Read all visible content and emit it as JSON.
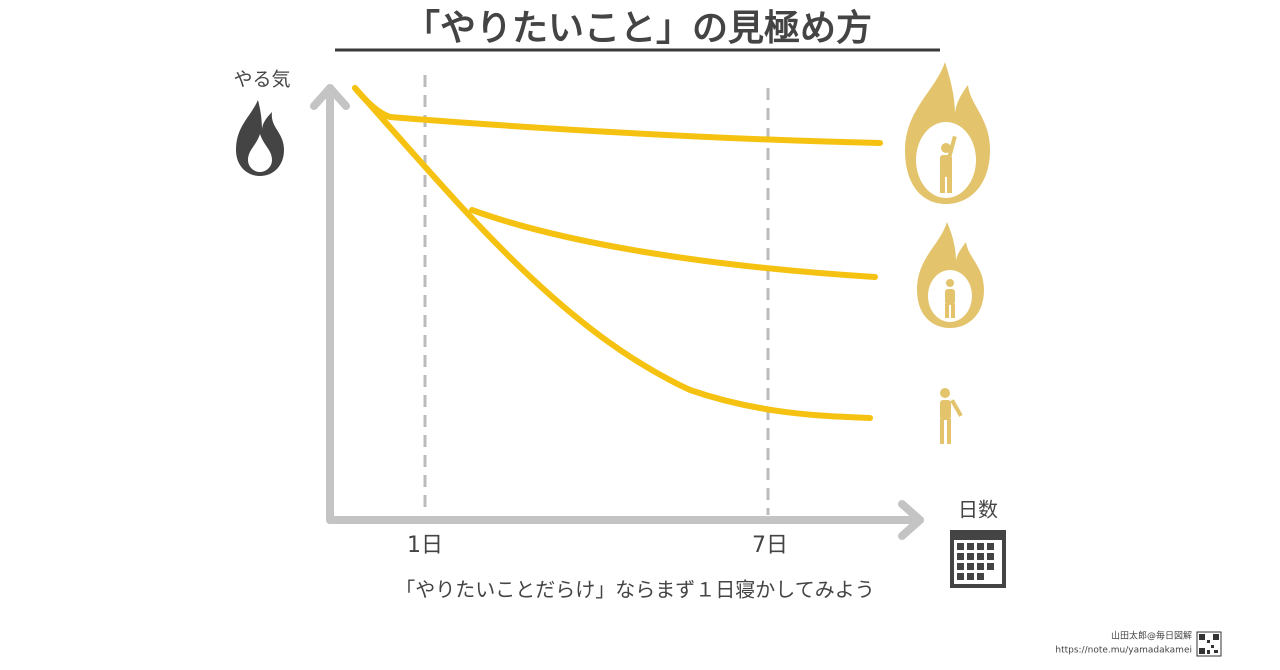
{
  "header": {
    "title": "「やりたいこと」の見極め方"
  },
  "axes": {
    "y_label": "やる気",
    "x_label": "日数",
    "x_marks": [
      "1日",
      "7日"
    ]
  },
  "caption": "「やりたいことだらけ」ならまず１日寝かしてみよう",
  "footer": {
    "author": "山田太郎@毎日図解",
    "url": "https://note.mu/yamadakamei"
  }
}
